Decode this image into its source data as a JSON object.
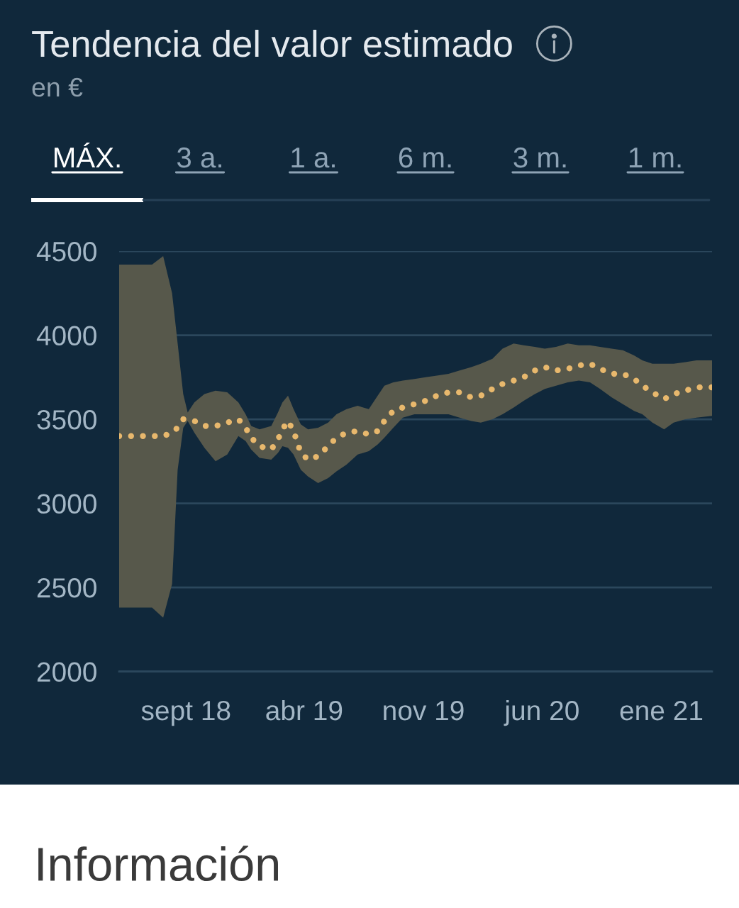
{
  "chart_data": {
    "type": "line",
    "title": "Tendencia del valor estimado",
    "subtitle": "en €",
    "annotations": [
      "MÁX.",
      "3 a.",
      "1 a.",
      "6 m.",
      "3 m.",
      "1 m.",
      "Información"
    ],
    "x": [
      "2018-05-04",
      "2018-07-02",
      "2018-07-22",
      "2018-08-07",
      "2018-08-17",
      "2018-08-27",
      "2018-09-04",
      "2018-09-16",
      "2018-10-04",
      "2018-10-24",
      "2018-11-14",
      "2018-12-04",
      "2018-12-17",
      "2018-12-27",
      "2019-01-11",
      "2019-02-01",
      "2019-02-13",
      "2019-02-21",
      "2019-03-03",
      "2019-03-13",
      "2019-03-26",
      "2019-04-08",
      "2019-04-26",
      "2019-05-14",
      "2019-05-29",
      "2019-06-16",
      "2019-07-06",
      "2019-07-26",
      "2019-08-11",
      "2019-08-23",
      "2019-09-08",
      "2019-09-25",
      "2019-10-16",
      "2019-11-05",
      "2019-11-25",
      "2019-12-16",
      "2020-01-05",
      "2020-01-26",
      "2020-02-12",
      "2020-03-04",
      "2020-03-22",
      "2020-04-11",
      "2020-04-29",
      "2020-05-19",
      "2020-06-06",
      "2020-06-26",
      "2020-07-17",
      "2020-08-06",
      "2020-08-26",
      "2020-09-13",
      "2020-10-04",
      "2020-10-24",
      "2020-11-13",
      "2020-11-28",
      "2020-12-16",
      "2021-01-06",
      "2021-01-23",
      "2021-02-13",
      "2021-03-05",
      "2021-04-02"
    ],
    "series": [
      {
        "color": "#e8b86d",
        "values": [
          3400,
          3400,
          3400,
          3420,
          3450,
          3500,
          3500,
          3490,
          3460,
          3460,
          3480,
          3500,
          3450,
          3390,
          3340,
          3320,
          3380,
          3440,
          3490,
          3430,
          3300,
          3260,
          3280,
          3340,
          3390,
          3420,
          3430,
          3410,
          3430,
          3490,
          3550,
          3570,
          3590,
          3610,
          3640,
          3660,
          3660,
          3630,
          3640,
          3680,
          3710,
          3730,
          3750,
          3790,
          3810,
          3790,
          3800,
          3820,
          3830,
          3800,
          3770,
          3770,
          3740,
          3700,
          3660,
          3620,
          3650,
          3670,
          3690,
          3690
        ],
        "lower": [
          2380,
          2380,
          2320,
          2520,
          3200,
          3450,
          3490,
          3420,
          3330,
          3250,
          3290,
          3400,
          3370,
          3320,
          3270,
          3260,
          3300,
          3340,
          3330,
          3290,
          3200,
          3160,
          3120,
          3150,
          3190,
          3230,
          3290,
          3310,
          3350,
          3390,
          3450,
          3510,
          3530,
          3530,
          3530,
          3530,
          3510,
          3490,
          3480,
          3500,
          3530,
          3570,
          3610,
          3650,
          3680,
          3700,
          3720,
          3730,
          3720,
          3680,
          3630,
          3590,
          3550,
          3530,
          3480,
          3440,
          3480,
          3500,
          3510,
          3520
        ],
        "upper": [
          4420,
          4420,
          4470,
          4250,
          3950,
          3650,
          3540,
          3600,
          3650,
          3670,
          3660,
          3600,
          3530,
          3460,
          3440,
          3460,
          3540,
          3600,
          3640,
          3560,
          3470,
          3440,
          3450,
          3480,
          3530,
          3560,
          3580,
          3560,
          3640,
          3700,
          3720,
          3730,
          3740,
          3750,
          3760,
          3770,
          3790,
          3810,
          3830,
          3860,
          3920,
          3950,
          3940,
          3930,
          3920,
          3930,
          3950,
          3940,
          3940,
          3930,
          3920,
          3910,
          3880,
          3850,
          3830,
          3830,
          3830,
          3840,
          3850,
          3850
        ]
      }
    ],
    "xlim": [
      "2018-05-04",
      "2021-04-02"
    ],
    "xticks": [
      {
        "value": "2018-09-01",
        "label": "sept 18"
      },
      {
        "value": "2019-04-01",
        "label": "abr 19"
      },
      {
        "value": "2019-11-01",
        "label": "nov 19"
      },
      {
        "value": "2020-06-01",
        "label": "jun 20"
      },
      {
        "value": "2021-01-01",
        "label": "ene 21"
      }
    ],
    "ylim": [
      2000,
      4500
    ],
    "yticks": [
      2000,
      2500,
      3000,
      3500,
      4000,
      4500
    ],
    "grid": "y",
    "line_style": "dotted"
  }
}
